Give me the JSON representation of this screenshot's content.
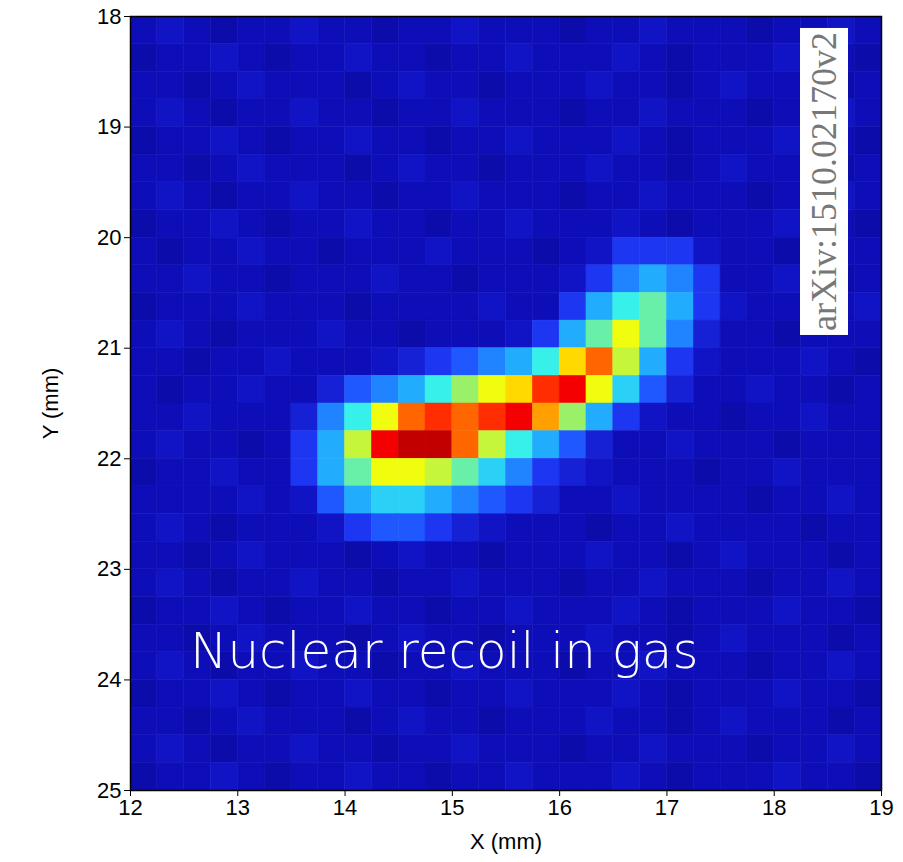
{
  "chart_data": {
    "type": "heatmap",
    "title": "Nuclear recoil in gas",
    "annotations": [
      "arXiv:1510.02170v2"
    ],
    "x_label": "X (mm)",
    "y_label": "Y (mm)",
    "xlim": [
      12,
      19
    ],
    "ylim": [
      25,
      18
    ],
    "xticks": [
      12,
      13,
      14,
      15,
      16,
      17,
      18,
      19
    ],
    "yticks": [
      18,
      19,
      20,
      21,
      22,
      23,
      24,
      25
    ],
    "x_bins": [
      12,
      12.25,
      12.5,
      12.75,
      13,
      13.25,
      13.5,
      13.75,
      14,
      14.25,
      14.5,
      14.75,
      15,
      15.25,
      15.5,
      15.75,
      16,
      16.25,
      16.5,
      16.75,
      17,
      17.25,
      17.5,
      17.75,
      18,
      18.25,
      18.5,
      18.75,
      19
    ],
    "y_bins": [
      18,
      18.25,
      18.5,
      18.75,
      19,
      19.25,
      19.5,
      19.75,
      20,
      20.25,
      20.5,
      20.75,
      21,
      21.25,
      21.5,
      21.75,
      22,
      22.25,
      22.5,
      22.75,
      23,
      23.25,
      23.5,
      23.75,
      24,
      24.25,
      24.5,
      24.75,
      25
    ],
    "color_range": [
      0,
      10
    ],
    "cells": [
      [
        1,
        1.2,
        1,
        0.8,
        1,
        1,
        1.2,
        1,
        1,
        0.8,
        1,
        1,
        1.2,
        1,
        1,
        1,
        0.8,
        1,
        1,
        1.2,
        1,
        1,
        1,
        0.8,
        1,
        1,
        1.2,
        1
      ],
      [
        0.8,
        1,
        1,
        1.2,
        1,
        0.8,
        1,
        1,
        1.2,
        1,
        1,
        0.8,
        1,
        1,
        1.2,
        1,
        1,
        1,
        1.2,
        1,
        0.8,
        1,
        1,
        1,
        1.2,
        1,
        1,
        0.8
      ],
      [
        1,
        1,
        0.8,
        1,
        1.2,
        1,
        1,
        1,
        0.8,
        1,
        1.2,
        1,
        1,
        0.8,
        1,
        1,
        1,
        1.2,
        1,
        1,
        0.8,
        1,
        1.2,
        1,
        1,
        1,
        0.8,
        1
      ],
      [
        1,
        1.2,
        1,
        0.8,
        1,
        1,
        1.2,
        1,
        1,
        0.8,
        1,
        1,
        1.2,
        1,
        1,
        1,
        0.8,
        1,
        1,
        1.2,
        1,
        1,
        1,
        0.8,
        1,
        1,
        1.2,
        1
      ],
      [
        0.8,
        1,
        1,
        1.2,
        1,
        0.8,
        1,
        1,
        1.2,
        1,
        1,
        0.8,
        1,
        1,
        1.2,
        1,
        1,
        1,
        1.2,
        1,
        0.8,
        1,
        1,
        1,
        1.2,
        1,
        1,
        0.8
      ],
      [
        1,
        1,
        0.8,
        1,
        1.2,
        1,
        1,
        1,
        0.8,
        1,
        1.2,
        1,
        1,
        0.8,
        1,
        1,
        1,
        1.2,
        1,
        1,
        0.8,
        1,
        1.2,
        1,
        1,
        1,
        0.8,
        1
      ],
      [
        1,
        1.2,
        1,
        0.8,
        1,
        1,
        1.2,
        1,
        1,
        0.8,
        1,
        1,
        1.2,
        1,
        1,
        1,
        0.8,
        1,
        1,
        1.2,
        1,
        1,
        1,
        0.8,
        1,
        1,
        1.2,
        1
      ],
      [
        0.8,
        1,
        1,
        1.2,
        1,
        0.8,
        1,
        1,
        1.2,
        1,
        1,
        0.8,
        1,
        1,
        1.2,
        1,
        1,
        1,
        1.2,
        1,
        0.8,
        1,
        1,
        1,
        1.2,
        1,
        1,
        0.8
      ],
      [
        1,
        0.8,
        1,
        1,
        1.2,
        1,
        1,
        0.8,
        1,
        1,
        1,
        1.2,
        1,
        1,
        1,
        0.8,
        1,
        1.2,
        2,
        2,
        2,
        1.2,
        1,
        1,
        0.8,
        1,
        1,
        1
      ],
      [
        1,
        1,
        1.2,
        1,
        1,
        0.8,
        1,
        1,
        1,
        1.2,
        1,
        1,
        0.8,
        1,
        1,
        1,
        1.2,
        2,
        3,
        3.5,
        3,
        2,
        1,
        1,
        1.2,
        1,
        0.8,
        1
      ],
      [
        0.8,
        1,
        1,
        1,
        1.2,
        1,
        1,
        1,
        0.8,
        1,
        1,
        1,
        1,
        1.2,
        1,
        1,
        2,
        3.5,
        4.5,
        5,
        3.5,
        2,
        1.2,
        1,
        1,
        1,
        1,
        1.2
      ],
      [
        1,
        1.2,
        1,
        0.8,
        1,
        1,
        1,
        1.2,
        1,
        1,
        0.8,
        1,
        1,
        1,
        1.2,
        2,
        3.5,
        5,
        6.5,
        5,
        3,
        1.5,
        1,
        1,
        0.8,
        1,
        1,
        1
      ],
      [
        1,
        1,
        0.8,
        1,
        1,
        1.2,
        1,
        1,
        1,
        1.2,
        1.5,
        2,
        2.5,
        3,
        3.5,
        4.5,
        7,
        8,
        6,
        3.5,
        2,
        1.2,
        1,
        1,
        1,
        1.2,
        1,
        0.8
      ],
      [
        1,
        0.8,
        1,
        1,
        1.2,
        1,
        1,
        1.5,
        2.5,
        3,
        3.5,
        4.5,
        5.5,
        6.5,
        7,
        8.5,
        9,
        6.5,
        4,
        2.5,
        1.5,
        1,
        1,
        1.2,
        1,
        1,
        0.8,
        1
      ],
      [
        1,
        1,
        1.2,
        1,
        1,
        1,
        1.5,
        3,
        4.5,
        6.5,
        8,
        8.5,
        8,
        8.5,
        9,
        7.5,
        5.5,
        3.5,
        2,
        1.2,
        1,
        1,
        0.8,
        1,
        1,
        1.2,
        1,
        1
      ],
      [
        1,
        1.2,
        1,
        1,
        0.8,
        1,
        2,
        3.5,
        6,
        9,
        9.5,
        9.5,
        8,
        6,
        4.5,
        3.5,
        2.5,
        1.5,
        1,
        1,
        1.2,
        1,
        1,
        1,
        0.8,
        1,
        1,
        1
      ],
      [
        0.8,
        1,
        1,
        1.2,
        1,
        1,
        2,
        3.5,
        5,
        6.5,
        6.5,
        6,
        5,
        4,
        3,
        2,
        1.5,
        1.2,
        1,
        1,
        1,
        0.8,
        1,
        1,
        1.2,
        1,
        1,
        1
      ],
      [
        1,
        1,
        1,
        1,
        1.2,
        1,
        1.2,
        2.5,
        3.5,
        4,
        4,
        3.5,
        3,
        2.5,
        2,
        1.5,
        1,
        1,
        1.2,
        1,
        1,
        1,
        1,
        0.8,
        1,
        1,
        1.2,
        1
      ],
      [
        1,
        1.2,
        1,
        0.8,
        1,
        1,
        1,
        1.2,
        2,
        2.5,
        2.5,
        2,
        1.5,
        1.2,
        1,
        1,
        1,
        0.8,
        1,
        1,
        1.2,
        1,
        1,
        1,
        1,
        0.8,
        1,
        1
      ],
      [
        1,
        1,
        0.8,
        1,
        1.2,
        1,
        1,
        1,
        0.8,
        1,
        1.2,
        1,
        1,
        0.8,
        1,
        1,
        1,
        1.2,
        1,
        1,
        0.8,
        1,
        1.2,
        1,
        1,
        1,
        0.8,
        1
      ],
      [
        1,
        1.2,
        1,
        0.8,
        1,
        1,
        1.2,
        1,
        1,
        0.8,
        1,
        1,
        1.2,
        1,
        1,
        1,
        0.8,
        1,
        1,
        1.2,
        1,
        1,
        1,
        0.8,
        1,
        1,
        1.2,
        1
      ],
      [
        0.8,
        1,
        1,
        1.2,
        1,
        0.8,
        1,
        1,
        1.2,
        1,
        1,
        0.8,
        1,
        1,
        1.2,
        1,
        1,
        1,
        1.2,
        1,
        0.8,
        1,
        1,
        1,
        1.2,
        1,
        1,
        0.8
      ],
      [
        1,
        1,
        0.8,
        1,
        1.2,
        1,
        1,
        1,
        0.8,
        1,
        1.2,
        1,
        1,
        0.8,
        1,
        1,
        1,
        1.2,
        1,
        1,
        0.8,
        1,
        1.2,
        1,
        1,
        1,
        0.8,
        1
      ],
      [
        1,
        1.2,
        1,
        0.8,
        1,
        1,
        1.2,
        1,
        1,
        0.8,
        1,
        1,
        1.2,
        1,
        1,
        1,
        0.8,
        1,
        1,
        1.2,
        1,
        1,
        1,
        0.8,
        1,
        1,
        1.2,
        1
      ],
      [
        0.8,
        1,
        1,
        1.2,
        1,
        0.8,
        1,
        1,
        1.2,
        1,
        1,
        0.8,
        1,
        1,
        1.2,
        1,
        1,
        1,
        1.2,
        1,
        0.8,
        1,
        1,
        1,
        1.2,
        1,
        1,
        0.8
      ],
      [
        1,
        1,
        0.8,
        1,
        1.2,
        1,
        1,
        1,
        0.8,
        1,
        1.2,
        1,
        1,
        0.8,
        1,
        1,
        1,
        1.2,
        1,
        1,
        0.8,
        1,
        1.2,
        1,
        1,
        1,
        0.8,
        1
      ],
      [
        1,
        1.2,
        1,
        0.8,
        1,
        1,
        1.2,
        1,
        1,
        0.8,
        1,
        1,
        1.2,
        1,
        1,
        1,
        0.8,
        1,
        1,
        1.2,
        1,
        1,
        1,
        0.8,
        1,
        1,
        1.2,
        1
      ],
      [
        0.8,
        1,
        1,
        1.2,
        1,
        0.8,
        1,
        1,
        1.2,
        1,
        1,
        0.8,
        1,
        1,
        1.2,
        1,
        1,
        1,
        1.2,
        1,
        0.8,
        1,
        1,
        1,
        1.2,
        1,
        1,
        0.8
      ]
    ]
  }
}
